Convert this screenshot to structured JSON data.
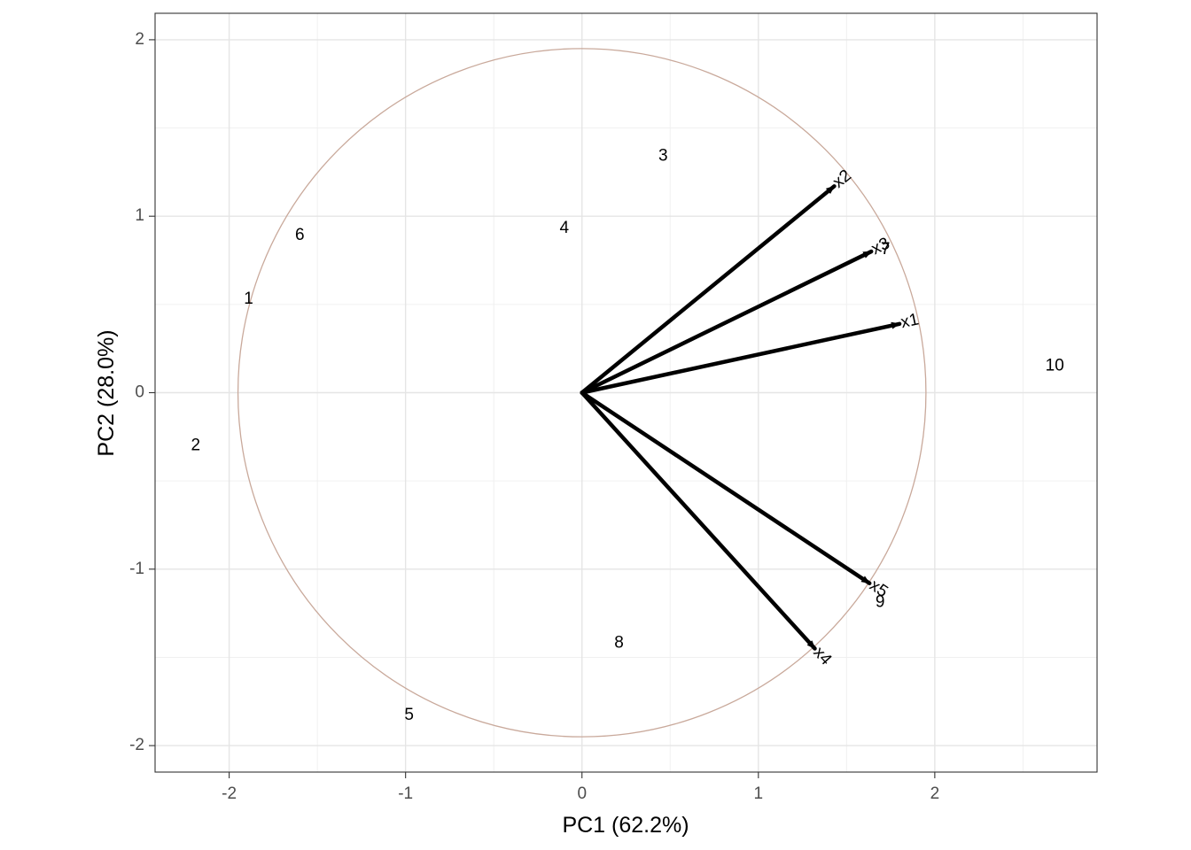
{
  "chart_data": {
    "type": "scatter",
    "subtype": "pca-biplot",
    "xlabel": "PC1 (62.2%)",
    "ylabel": "PC2 (28.0%)",
    "xlim": [
      -2.42,
      2.92
    ],
    "ylim": [
      -2.15,
      2.15
    ],
    "xticks": [
      -2,
      -1,
      0,
      1,
      2
    ],
    "yticks": [
      -2,
      -1,
      0,
      1,
      2
    ],
    "xtick_labels": [
      "-2",
      "-1",
      "0",
      "1",
      "2"
    ],
    "ytick_labels": [
      "-2",
      "-1",
      "0",
      "1",
      "2"
    ],
    "grid": true,
    "theme": "bw",
    "circle": {
      "center": [
        0,
        0
      ],
      "radius": 1.95,
      "color": "#c9a99b"
    },
    "observations": [
      {
        "label": "1",
        "x": -1.89,
        "y": 0.53
      },
      {
        "label": "2",
        "x": -2.19,
        "y": -0.3
      },
      {
        "label": "3",
        "x": 0.46,
        "y": 1.34
      },
      {
        "label": "4",
        "x": -0.1,
        "y": 0.93
      },
      {
        "label": "5",
        "x": -0.98,
        "y": -1.83
      },
      {
        "label": "6",
        "x": -1.6,
        "y": 0.89
      },
      {
        "label": "7",
        "x": 1.72,
        "y": 0.81
      },
      {
        "label": "8",
        "x": 0.21,
        "y": -1.42
      },
      {
        "label": "9",
        "x": 1.69,
        "y": -1.19
      },
      {
        "label": "10",
        "x": 2.68,
        "y": 0.15
      }
    ],
    "loadings": [
      {
        "label": "x1",
        "x": 1.8,
        "y": 0.39
      },
      {
        "label": "x2",
        "x": 1.43,
        "y": 1.17
      },
      {
        "label": "x3",
        "x": 1.64,
        "y": 0.8
      },
      {
        "label": "x4",
        "x": 1.32,
        "y": -1.45
      },
      {
        "label": "x5",
        "x": 1.63,
        "y": -1.08
      }
    ],
    "arrow_color": "#000000",
    "text_color": "#000000"
  }
}
